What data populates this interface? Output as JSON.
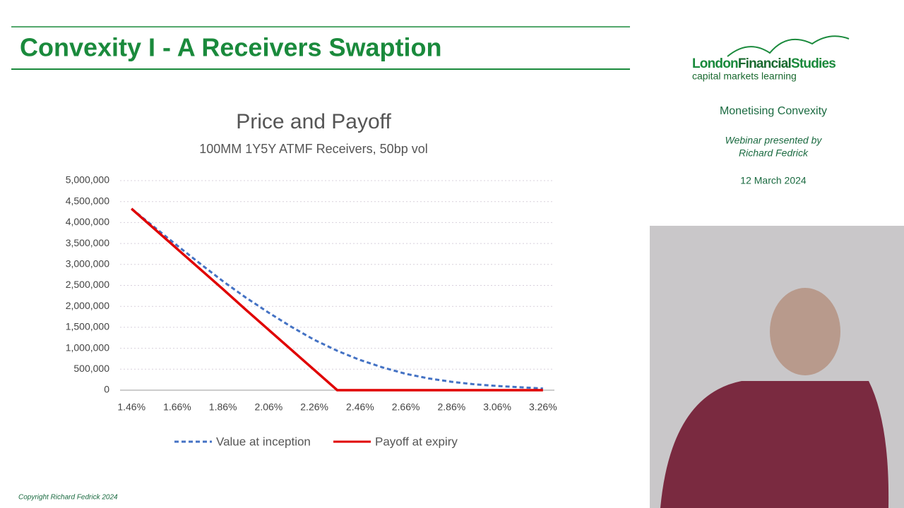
{
  "slide_title": "Convexity I - A Receivers Swaption",
  "logo": {
    "parts": [
      "London",
      "Financial",
      "Studies"
    ],
    "tagline": "capital markets learning"
  },
  "side": {
    "topic": "Monetising Convexity",
    "presented": [
      "Webinar presented by",
      "Richard Fedrick"
    ],
    "date": "12 March 2024"
  },
  "copyright": "Copyright Richard Fedrick 2024",
  "chart_data": {
    "type": "line",
    "title": "Price and Payoff",
    "subtitle": "100MM 1Y5Y ATMF Receivers, 50bp vol",
    "x": [
      1.46,
      1.56,
      1.66,
      1.76,
      1.86,
      1.96,
      2.06,
      2.16,
      2.26,
      2.36,
      2.46,
      2.56,
      2.66,
      2.76,
      2.86,
      2.96,
      3.06,
      3.16,
      3.26
    ],
    "series": [
      {
        "name": "Value at inception",
        "color": "#4472c4",
        "dashed": true,
        "values": [
          4330000,
          3890000,
          3450000,
          3020000,
          2600000,
          2210000,
          1850000,
          1510000,
          1200000,
          940000,
          720000,
          540000,
          390000,
          280000,
          200000,
          140000,
          100000,
          70000,
          40000
        ]
      },
      {
        "name": "Payoff at expiry",
        "color": "#e00000",
        "dashed": false,
        "values": [
          4330000,
          3850000,
          3370000,
          2890000,
          2410000,
          1920000,
          1440000,
          960000,
          480000,
          0,
          0,
          0,
          0,
          0,
          0,
          0,
          0,
          0,
          0
        ]
      }
    ],
    "xlim": [
      1.41,
      3.31
    ],
    "xticks": [
      {
        "value": 1.46,
        "label": "1.46%"
      },
      {
        "value": 1.66,
        "label": "1.66%"
      },
      {
        "value": 1.86,
        "label": "1.86%"
      },
      {
        "value": 2.06,
        "label": "2.06%"
      },
      {
        "value": 2.26,
        "label": "2.26%"
      },
      {
        "value": 2.46,
        "label": "2.46%"
      },
      {
        "value": 2.66,
        "label": "2.66%"
      },
      {
        "value": 2.86,
        "label": "2.86%"
      },
      {
        "value": 3.06,
        "label": "3.06%"
      },
      {
        "value": 3.26,
        "label": "3.26%"
      }
    ],
    "ylim": [
      0,
      5000000
    ],
    "yticks": [
      0,
      {
        "value": 500000,
        "label": "500,000"
      },
      {
        "value": 1000000,
        "label": "1,000,000"
      },
      {
        "value": 1500000,
        "label": "1,500,000"
      },
      {
        "value": 2000000,
        "label": "2,000,000"
      },
      {
        "value": 2500000,
        "label": "2,500,000"
      },
      {
        "value": 3000000,
        "label": "3,000,000"
      },
      {
        "value": 3500000,
        "label": "3,500,000"
      },
      {
        "value": 4000000,
        "label": "4,000,000"
      },
      {
        "value": 4500000,
        "label": "4,500,000"
      },
      {
        "value": 5000000,
        "label": "5,000,000"
      }
    ],
    "grid": true,
    "legend": "bottom"
  }
}
